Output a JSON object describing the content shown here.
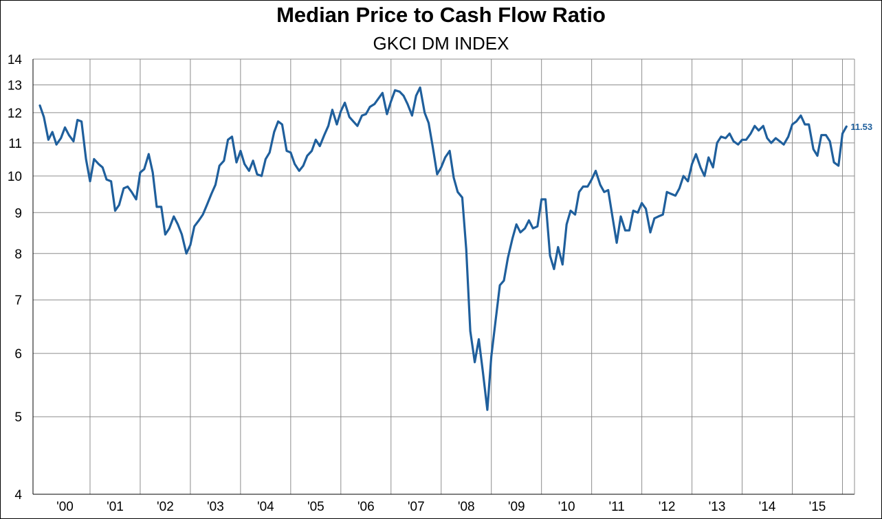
{
  "chart_data": {
    "type": "line",
    "title": "Median Price to Cash Flow Ratio",
    "subtitle": "GKCI DM INDEX",
    "y_scale": "log",
    "ylim": [
      4,
      14
    ],
    "y_ticks": [
      4,
      5,
      6,
      7,
      8,
      9,
      10,
      11,
      12,
      13,
      14
    ],
    "x_range": [
      2000,
      2016
    ],
    "x_tick_labels": [
      "'00",
      "'01",
      "'02",
      "'03",
      "'04",
      "'05",
      "'06",
      "'07",
      "'08",
      "'09",
      "'10",
      "'11",
      "'12",
      "'13",
      "'14",
      "'15"
    ],
    "grid": true,
    "line_color": "#1f5f9c",
    "end_label": "11.53",
    "series": [
      {
        "values": [
          [
            2000.0,
            12.25
          ],
          [
            2000.08,
            11.85
          ],
          [
            2000.17,
            11.1
          ],
          [
            2000.25,
            11.35
          ],
          [
            2000.33,
            10.95
          ],
          [
            2000.42,
            11.15
          ],
          [
            2000.5,
            11.5
          ],
          [
            2000.58,
            11.25
          ],
          [
            2000.67,
            11.05
          ],
          [
            2000.75,
            11.75
          ],
          [
            2000.83,
            11.7
          ],
          [
            2000.92,
            10.5
          ],
          [
            2001.0,
            9.85
          ],
          [
            2001.08,
            10.5
          ],
          [
            2001.17,
            10.35
          ],
          [
            2001.25,
            10.25
          ],
          [
            2001.33,
            9.9
          ],
          [
            2001.42,
            9.85
          ],
          [
            2001.5,
            9.05
          ],
          [
            2001.58,
            9.2
          ],
          [
            2001.67,
            9.65
          ],
          [
            2001.75,
            9.7
          ],
          [
            2001.83,
            9.55
          ],
          [
            2001.92,
            9.35
          ],
          [
            2002.0,
            10.1
          ],
          [
            2002.08,
            10.2
          ],
          [
            2002.17,
            10.65
          ],
          [
            2002.25,
            10.1
          ],
          [
            2002.33,
            9.15
          ],
          [
            2002.42,
            9.15
          ],
          [
            2002.5,
            8.45
          ],
          [
            2002.58,
            8.6
          ],
          [
            2002.67,
            8.9
          ],
          [
            2002.75,
            8.7
          ],
          [
            2002.83,
            8.45
          ],
          [
            2002.92,
            8.0
          ],
          [
            2003.0,
            8.2
          ],
          [
            2003.08,
            8.65
          ],
          [
            2003.17,
            8.8
          ],
          [
            2003.25,
            8.95
          ],
          [
            2003.33,
            9.2
          ],
          [
            2003.42,
            9.5
          ],
          [
            2003.5,
            9.75
          ],
          [
            2003.58,
            10.3
          ],
          [
            2003.67,
            10.45
          ],
          [
            2003.75,
            11.1
          ],
          [
            2003.83,
            11.2
          ],
          [
            2003.92,
            10.4
          ],
          [
            2004.0,
            10.75
          ],
          [
            2004.08,
            10.35
          ],
          [
            2004.17,
            10.15
          ],
          [
            2004.25,
            10.45
          ],
          [
            2004.33,
            10.05
          ],
          [
            2004.42,
            10.0
          ],
          [
            2004.5,
            10.5
          ],
          [
            2004.58,
            10.7
          ],
          [
            2004.67,
            11.35
          ],
          [
            2004.75,
            11.7
          ],
          [
            2004.83,
            11.6
          ],
          [
            2004.92,
            10.75
          ],
          [
            2005.0,
            10.7
          ],
          [
            2005.08,
            10.35
          ],
          [
            2005.17,
            10.15
          ],
          [
            2005.25,
            10.3
          ],
          [
            2005.33,
            10.6
          ],
          [
            2005.42,
            10.75
          ],
          [
            2005.5,
            11.1
          ],
          [
            2005.58,
            10.9
          ],
          [
            2005.67,
            11.25
          ],
          [
            2005.75,
            11.55
          ],
          [
            2005.83,
            12.1
          ],
          [
            2005.92,
            11.6
          ],
          [
            2006.0,
            12.05
          ],
          [
            2006.08,
            12.35
          ],
          [
            2006.17,
            11.85
          ],
          [
            2006.25,
            11.7
          ],
          [
            2006.33,
            11.55
          ],
          [
            2006.42,
            11.9
          ],
          [
            2006.5,
            11.95
          ],
          [
            2006.58,
            12.2
          ],
          [
            2006.67,
            12.3
          ],
          [
            2006.75,
            12.5
          ],
          [
            2006.83,
            12.7
          ],
          [
            2006.92,
            11.95
          ],
          [
            2007.0,
            12.4
          ],
          [
            2007.08,
            12.8
          ],
          [
            2007.17,
            12.75
          ],
          [
            2007.25,
            12.6
          ],
          [
            2007.33,
            12.3
          ],
          [
            2007.42,
            11.9
          ],
          [
            2007.5,
            12.6
          ],
          [
            2007.58,
            12.9
          ],
          [
            2007.67,
            12.0
          ],
          [
            2007.75,
            11.65
          ],
          [
            2007.83,
            10.9
          ],
          [
            2007.92,
            10.05
          ],
          [
            2008.0,
            10.25
          ],
          [
            2008.08,
            10.55
          ],
          [
            2008.17,
            10.75
          ],
          [
            2008.25,
            9.95
          ],
          [
            2008.33,
            9.55
          ],
          [
            2008.42,
            9.4
          ],
          [
            2008.5,
            8.1
          ],
          [
            2008.58,
            6.4
          ],
          [
            2008.67,
            5.85
          ],
          [
            2008.75,
            6.25
          ],
          [
            2008.83,
            5.7
          ],
          [
            2008.92,
            5.1
          ],
          [
            2009.0,
            5.95
          ],
          [
            2009.08,
            6.55
          ],
          [
            2009.17,
            7.3
          ],
          [
            2009.25,
            7.4
          ],
          [
            2009.33,
            7.9
          ],
          [
            2009.42,
            8.35
          ],
          [
            2009.5,
            8.7
          ],
          [
            2009.58,
            8.5
          ],
          [
            2009.67,
            8.6
          ],
          [
            2009.75,
            8.8
          ],
          [
            2009.83,
            8.6
          ],
          [
            2009.92,
            8.65
          ],
          [
            2010.0,
            9.35
          ],
          [
            2010.08,
            9.35
          ],
          [
            2010.17,
            7.95
          ],
          [
            2010.25,
            7.65
          ],
          [
            2010.33,
            8.15
          ],
          [
            2010.42,
            7.75
          ],
          [
            2010.5,
            8.7
          ],
          [
            2010.58,
            9.05
          ],
          [
            2010.67,
            8.95
          ],
          [
            2010.75,
            9.55
          ],
          [
            2010.83,
            9.7
          ],
          [
            2010.92,
            9.7
          ],
          [
            2011.0,
            9.9
          ],
          [
            2011.08,
            10.15
          ],
          [
            2011.17,
            9.75
          ],
          [
            2011.25,
            9.55
          ],
          [
            2011.33,
            9.6
          ],
          [
            2011.42,
            8.85
          ],
          [
            2011.5,
            8.25
          ],
          [
            2011.58,
            8.9
          ],
          [
            2011.67,
            8.55
          ],
          [
            2011.75,
            8.55
          ],
          [
            2011.83,
            9.05
          ],
          [
            2011.92,
            9.0
          ],
          [
            2012.0,
            9.25
          ],
          [
            2012.08,
            9.1
          ],
          [
            2012.17,
            8.5
          ],
          [
            2012.25,
            8.85
          ],
          [
            2012.33,
            8.9
          ],
          [
            2012.42,
            8.95
          ],
          [
            2012.5,
            9.55
          ],
          [
            2012.58,
            9.5
          ],
          [
            2012.67,
            9.45
          ],
          [
            2012.75,
            9.65
          ],
          [
            2012.83,
            10.0
          ],
          [
            2012.92,
            9.85
          ],
          [
            2013.0,
            10.35
          ],
          [
            2013.08,
            10.65
          ],
          [
            2013.17,
            10.25
          ],
          [
            2013.25,
            10.0
          ],
          [
            2013.33,
            10.55
          ],
          [
            2013.42,
            10.25
          ],
          [
            2013.5,
            11.0
          ],
          [
            2013.58,
            11.2
          ],
          [
            2013.67,
            11.15
          ],
          [
            2013.75,
            11.3
          ],
          [
            2013.83,
            11.05
          ],
          [
            2013.92,
            10.95
          ],
          [
            2014.0,
            11.1
          ],
          [
            2014.08,
            11.1
          ],
          [
            2014.17,
            11.3
          ],
          [
            2014.25,
            11.55
          ],
          [
            2014.33,
            11.4
          ],
          [
            2014.42,
            11.55
          ],
          [
            2014.5,
            11.15
          ],
          [
            2014.58,
            11.0
          ],
          [
            2014.67,
            11.15
          ],
          [
            2014.75,
            11.05
          ],
          [
            2014.83,
            10.95
          ],
          [
            2014.92,
            11.2
          ],
          [
            2015.0,
            11.6
          ],
          [
            2015.08,
            11.7
          ],
          [
            2015.17,
            11.9
          ],
          [
            2015.25,
            11.6
          ],
          [
            2015.33,
            11.6
          ],
          [
            2015.42,
            10.8
          ],
          [
            2015.5,
            10.6
          ],
          [
            2015.58,
            11.25
          ],
          [
            2015.67,
            11.25
          ],
          [
            2015.75,
            11.05
          ],
          [
            2015.83,
            10.4
          ],
          [
            2015.92,
            10.3
          ],
          [
            2016.0,
            11.3
          ],
          [
            2016.08,
            11.53
          ]
        ]
      }
    ]
  }
}
